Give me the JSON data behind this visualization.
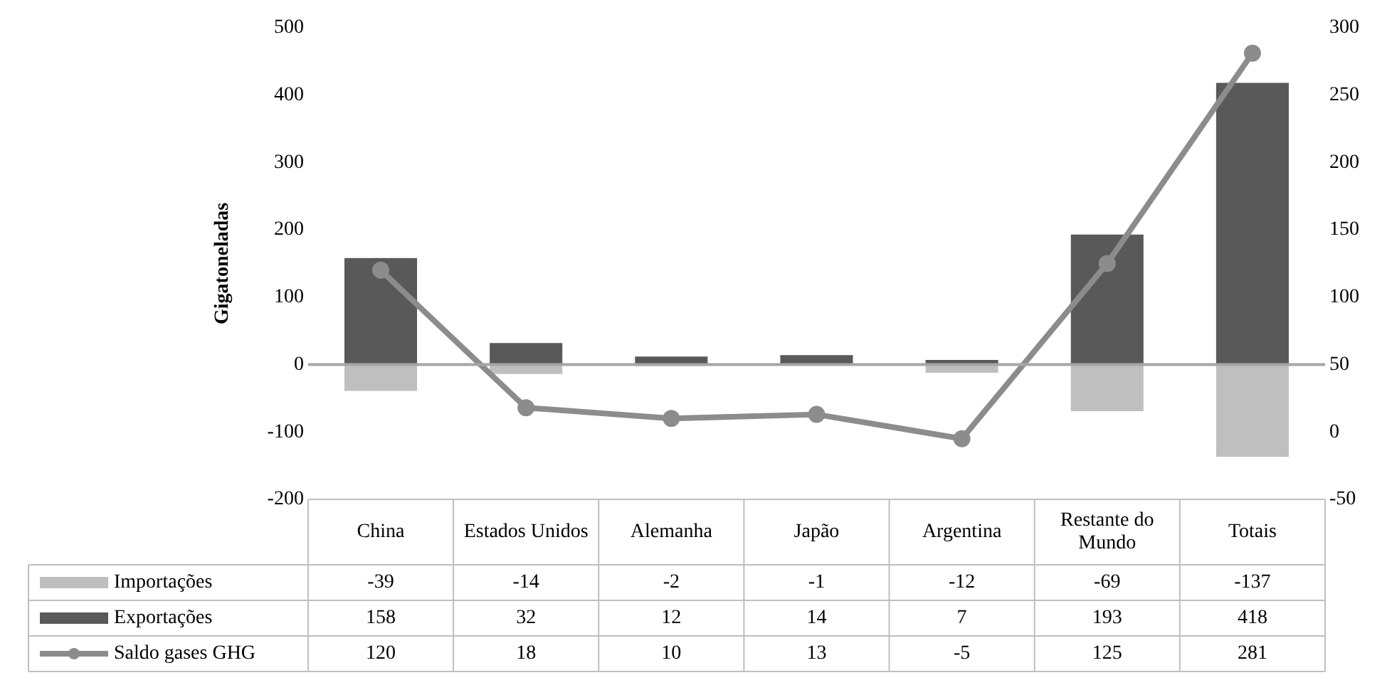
{
  "chart_data": {
    "type": "bar",
    "stacked": true,
    "ylabel": "Gigatoneladas",
    "categories": [
      "China",
      "Estados Unidos",
      "Alemanha",
      "Japão",
      "Argentina",
      "Restante do Mundo",
      "Totais"
    ],
    "series": [
      {
        "name": "Importações",
        "color": "#bfbfbf",
        "values": [
          -39,
          -14,
          -2,
          -1,
          -12,
          -69,
          -137
        ]
      },
      {
        "name": "Exportações",
        "color": "#595959",
        "values": [
          158,
          32,
          12,
          14,
          7,
          193,
          418
        ]
      },
      {
        "name": "Saldo gases GHG",
        "type": "line",
        "axis": "y2",
        "color": "#8c8c8c",
        "marker": "circle",
        "values": [
          120,
          18,
          10,
          13,
          -5,
          125,
          281
        ]
      }
    ],
    "ylim": [
      -200,
      500
    ],
    "yticks": [
      -200,
      -100,
      0,
      100,
      200,
      300,
      400,
      500
    ],
    "y2lim": [
      -50,
      300
    ],
    "y2ticks": [
      -50,
      0,
      50,
      100,
      150,
      200,
      250,
      300
    ],
    "ref_lines": [
      {
        "axis": "y",
        "value": 0,
        "color": "#a6a6a6"
      }
    ],
    "data_labels": true,
    "legend": "bottom",
    "grid": false
  }
}
